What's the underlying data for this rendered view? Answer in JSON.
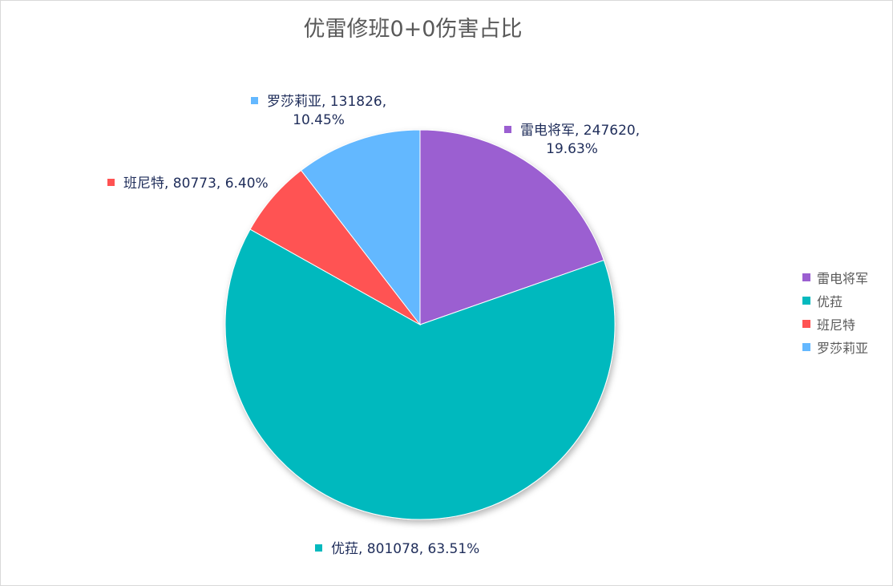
{
  "chart_data": {
    "type": "pie",
    "title": "优雷修班0+0伤害占比",
    "categories": [
      "雷电将军",
      "优菈",
      "班尼特",
      "罗莎莉亚"
    ],
    "values": [
      247620,
      801078,
      80773,
      131826
    ],
    "percents": [
      "19.63%",
      "63.51%",
      "6.40%",
      "10.45%"
    ],
    "colors": [
      "#9B5FD1",
      "#04B9BE",
      "#FF5252",
      "#64B8FF"
    ],
    "data_labels": [
      [
        "雷电将军, 247620,",
        "19.63%"
      ],
      [
        "优菈, 801078, 63.51%"
      ],
      [
        "班尼特, 80773, 6.40%"
      ],
      [
        "罗莎莉亚, 131826,",
        "10.45%"
      ]
    ],
    "start_angle": "12 o'clock",
    "direction": "clockwise",
    "legend": "right",
    "label_color": "#1F2D5A"
  }
}
